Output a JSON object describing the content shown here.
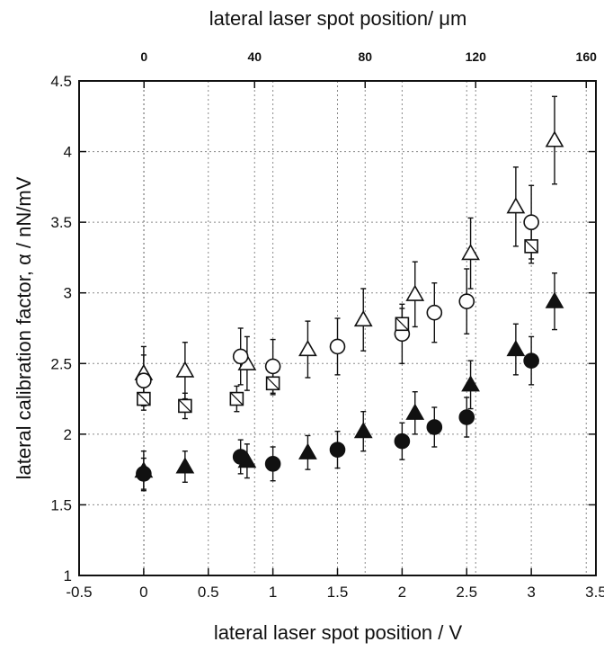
{
  "chart_data": {
    "type": "scatter",
    "title": "",
    "xlabel": "lateral laser spot position / V",
    "ylabel": "lateral calibration factor, α / nN/mV",
    "x2label": "lateral laser spot position/ μm",
    "xlim": [
      -0.5,
      3.5
    ],
    "ylim": [
      1,
      4.5
    ],
    "x2lim": [
      -23.5,
      163.5
    ],
    "grid": true,
    "legend": "none",
    "x_ticks": [
      "-0.5",
      "0",
      "0.5",
      "1",
      "1.5",
      "2",
      "2.5",
      "3",
      "3.5"
    ],
    "y_ticks": [
      "1",
      "1.5",
      "2",
      "2.5",
      "3",
      "3.5",
      "4",
      "4.5"
    ],
    "x2_ticks": [
      "0",
      "40",
      "80",
      "120",
      "160"
    ],
    "series": [
      {
        "marker": "open-triangle",
        "points": [
          {
            "x": 0.0,
            "y": 2.43,
            "err": 0.19
          },
          {
            "x": 0.32,
            "y": 2.45,
            "err": 0.2
          },
          {
            "x": 0.8,
            "y": 2.5,
            "err": 0.19
          },
          {
            "x": 1.27,
            "y": 2.6,
            "err": 0.2
          },
          {
            "x": 1.7,
            "y": 2.81,
            "err": 0.22
          },
          {
            "x": 2.1,
            "y": 2.99,
            "err": 0.23
          },
          {
            "x": 2.53,
            "y": 3.28,
            "err": 0.25
          },
          {
            "x": 2.88,
            "y": 3.61,
            "err": 0.28
          },
          {
            "x": 3.18,
            "y": 4.08,
            "err": 0.31
          }
        ]
      },
      {
        "marker": "open-circle",
        "points": [
          {
            "x": 0.0,
            "y": 2.38,
            "err": 0.18
          },
          {
            "x": 0.75,
            "y": 2.55,
            "err": 0.2
          },
          {
            "x": 1.0,
            "y": 2.48,
            "err": 0.19
          },
          {
            "x": 1.5,
            "y": 2.62,
            "err": 0.2
          },
          {
            "x": 2.0,
            "y": 2.71,
            "err": 0.21
          },
          {
            "x": 2.25,
            "y": 2.86,
            "err": 0.21
          },
          {
            "x": 2.5,
            "y": 2.94,
            "err": 0.23
          },
          {
            "x": 3.0,
            "y": 3.5,
            "err": 0.26
          }
        ]
      },
      {
        "marker": "open-square",
        "points": [
          {
            "x": 0.0,
            "y": 2.25,
            "err": 0.08
          },
          {
            "x": 0.32,
            "y": 2.2,
            "err": 0.09
          },
          {
            "x": 0.72,
            "y": 2.25,
            "err": 0.09
          },
          {
            "x": 1.0,
            "y": 2.36,
            "err": 0.08
          },
          {
            "x": 2.0,
            "y": 2.78,
            "err": 0.11
          },
          {
            "x": 3.0,
            "y": 3.33,
            "err": 0.12
          }
        ]
      },
      {
        "marker": "filled-triangle",
        "points": [
          {
            "x": 0.0,
            "y": 1.74,
            "err": 0.14
          },
          {
            "x": 0.32,
            "y": 1.77,
            "err": 0.11
          },
          {
            "x": 0.8,
            "y": 1.81,
            "err": 0.12
          },
          {
            "x": 1.27,
            "y": 1.87,
            "err": 0.12
          },
          {
            "x": 1.7,
            "y": 2.02,
            "err": 0.14
          },
          {
            "x": 2.1,
            "y": 2.15,
            "err": 0.15
          },
          {
            "x": 2.53,
            "y": 2.35,
            "err": 0.17
          },
          {
            "x": 2.88,
            "y": 2.6,
            "err": 0.18
          },
          {
            "x": 3.18,
            "y": 2.94,
            "err": 0.2
          }
        ]
      },
      {
        "marker": "filled-circle",
        "points": [
          {
            "x": 0.0,
            "y": 1.72,
            "err": 0.11
          },
          {
            "x": 0.75,
            "y": 1.84,
            "err": 0.12
          },
          {
            "x": 1.0,
            "y": 1.79,
            "err": 0.12
          },
          {
            "x": 1.5,
            "y": 1.89,
            "err": 0.13
          },
          {
            "x": 2.0,
            "y": 1.95,
            "err": 0.13
          },
          {
            "x": 2.25,
            "y": 2.05,
            "err": 0.14
          },
          {
            "x": 2.5,
            "y": 2.12,
            "err": 0.14
          },
          {
            "x": 3.0,
            "y": 2.52,
            "err": 0.17
          }
        ]
      }
    ]
  }
}
